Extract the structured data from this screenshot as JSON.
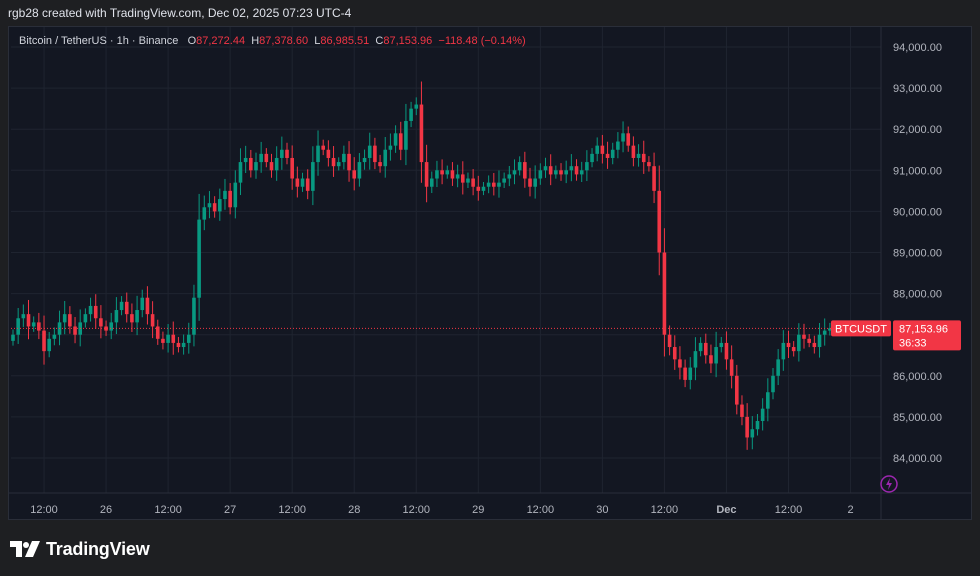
{
  "header": {
    "text": "rgb28 created with TradingView.com, Dec 02, 2025 07:23 UTC-4"
  },
  "legend": {
    "symbol": "Bitcoin / TetherUS · 1h · Binance",
    "o_label": "O",
    "o_value": "87,272.44",
    "h_label": "H",
    "h_value": "87,378.60",
    "l_label": "L",
    "l_value": "86,985.51",
    "c_label": "C",
    "c_value": "87,153.96",
    "change": "−118.48 (−0.14%)"
  },
  "price_tag": {
    "ticker": "BTCUSDT",
    "price": "87,153.96",
    "countdown": "36:33"
  },
  "footer": {
    "brand": "TradingView"
  },
  "colors": {
    "up": "#089981",
    "down": "#f23645",
    "background": "#131722",
    "grid": "#1f2430",
    "axis_text": "#b2b5be"
  },
  "chart_data": {
    "type": "candlestick",
    "title": "Bitcoin / TetherUS · 1h · Binance",
    "ylim": [
      83400,
      94600
    ],
    "y_ticks": [
      "94,000.00",
      "93,000.00",
      "92,000.00",
      "91,000.00",
      "90,000.00",
      "89,000.00",
      "88,000.00",
      "87,000.00",
      "86,000.00",
      "85,000.00",
      "84,000.00"
    ],
    "y_tick_values": [
      94000,
      93000,
      92000,
      91000,
      90000,
      89000,
      88000,
      87000,
      86000,
      85000,
      84000
    ],
    "x_ticks": [
      {
        "label": "12:00",
        "index": 6
      },
      {
        "label": "26",
        "index": 18
      },
      {
        "label": "12:00",
        "index": 30
      },
      {
        "label": "27",
        "index": 42
      },
      {
        "label": "12:00",
        "index": 54
      },
      {
        "label": "28",
        "index": 66
      },
      {
        "label": "12:00",
        "index": 78
      },
      {
        "label": "29",
        "index": 90
      },
      {
        "label": "12:00",
        "index": 102
      },
      {
        "label": "30",
        "index": 114
      },
      {
        "label": "12:00",
        "index": 126
      },
      {
        "label": "Dec",
        "index": 138
      },
      {
        "label": "12:00",
        "index": 150
      },
      {
        "label": "2",
        "index": 162
      }
    ],
    "last_price": 87153.96,
    "grid": true,
    "closes": [
      87000,
      87400,
      87500,
      87200,
      87300,
      87100,
      86600,
      86900,
      87000,
      87300,
      87500,
      87200,
      87000,
      87300,
      87500,
      87700,
      87400,
      87200,
      87100,
      87300,
      87600,
      87800,
      87500,
      87300,
      87600,
      87900,
      87500,
      87200,
      86900,
      86800,
      87000,
      86800,
      86700,
      86800,
      87000,
      87900,
      89800,
      90100,
      90200,
      90000,
      90300,
      90500,
      90100,
      90700,
      91200,
      91300,
      91000,
      91200,
      91400,
      91200,
      91000,
      91300,
      91500,
      91300,
      90800,
      90600,
      90800,
      90500,
      91200,
      91600,
      91500,
      91300,
      91100,
      91200,
      91400,
      91000,
      90800,
      91200,
      91300,
      91600,
      91200,
      91100,
      91500,
      91600,
      91900,
      91500,
      92200,
      92500,
      92600,
      91200,
      90600,
      90800,
      91000,
      90900,
      91000,
      90800,
      90900,
      90700,
      90800,
      90600,
      90500,
      90600,
      90700,
      90600,
      90700,
      90800,
      90900,
      91000,
      91200,
      90800,
      90600,
      90800,
      91000,
      91100,
      90900,
      91000,
      90900,
      91000,
      91100,
      90900,
      91000,
      91200,
      91400,
      91600,
      91400,
      91300,
      91500,
      91700,
      91900,
      91600,
      91300,
      91400,
      91200,
      91100,
      90500,
      89000,
      87000,
      86700,
      86400,
      86200,
      85900,
      86200,
      86600,
      86800,
      86500,
      86300,
      86700,
      86800,
      86400,
      86000,
      85300,
      85000,
      84500,
      84700,
      84900,
      85200,
      85600,
      86000,
      86400,
      86800,
      86700,
      86600,
      87000,
      86900,
      86800,
      86700,
      87000,
      87100,
      87153.96
    ]
  }
}
